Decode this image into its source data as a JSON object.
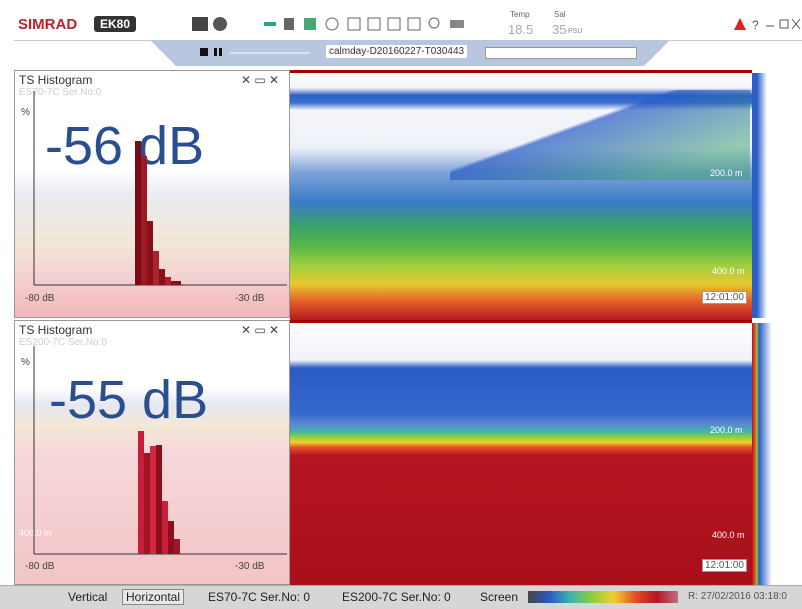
{
  "toolbar": {
    "brand": "SIMRAD",
    "product": "EK80",
    "temp_label": "Temp",
    "temp_value": "18.5",
    "sal_label": "Sal",
    "sal_value": "35",
    "sal_unit": "PSU"
  },
  "file": "calmday-D20160227-T030443",
  "panels": [
    {
      "title": "TS Histogram",
      "transducer": "ES70-7C Ser.No:0",
      "y_axis": "%",
      "reading": "-56 dB",
      "x_min": "-80 dB",
      "x_max": "-30 dB",
      "depth_labels": [
        "200.0 m",
        "400.0 m"
      ],
      "time": "12:01:00"
    },
    {
      "title": "TS Histogram",
      "transducer": "ES200-7C Ser.No:0",
      "y_axis": "%",
      "reading": "-55 dB",
      "x_min": "-80 dB",
      "x_max": "-30 dB",
      "depth_labels": [
        "200.0 m",
        "400.0 m"
      ],
      "left_depth": "400.0 m",
      "time": "12:01:00"
    }
  ],
  "status_bar": {
    "items": [
      "Vertical",
      "Horizontal",
      "ES70-7C Ser.No: 0",
      "ES200-7C Ser.No: 0",
      "Screen"
    ],
    "timestamp": "R: 27/02/2016  03:18:0"
  }
}
